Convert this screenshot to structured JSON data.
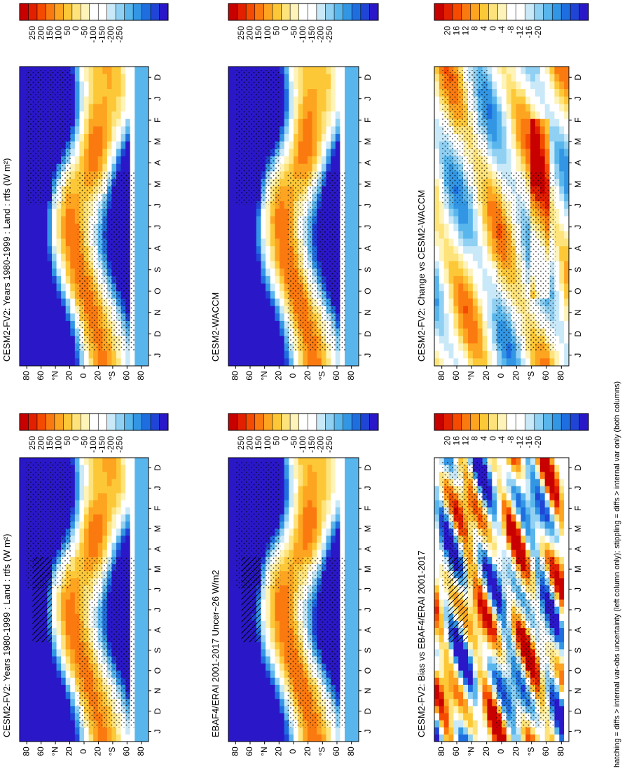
{
  "footnote": "hatching = diffs > internal var-obs uncertainty (left column only); stippling = diffs > internal var only (both columns)",
  "chart_data": [
    {
      "type": "heatmap",
      "title": "CESM2-FV2: Years 1980-1999 : Land : rtfs (W m²)",
      "months": [
        "D",
        "J",
        "F",
        "M",
        "A",
        "M",
        "J",
        "J",
        "A",
        "S",
        "O",
        "N",
        "D",
        "J"
      ],
      "lat_ticks": [
        "80",
        "60",
        "°N",
        "20",
        "0",
        "20",
        "°S",
        "60",
        "80"
      ],
      "colorbar": [
        "250",
        "200",
        "150",
        "100",
        "50",
        "0",
        "-50",
        "-100",
        "-150",
        "-200",
        "-250"
      ]
    },
    {
      "type": "heatmap",
      "title": "CESM2-FV2: Years 1980-1999 : Land : rtfs (W m²)",
      "months": [
        "D",
        "J",
        "F",
        "M",
        "A",
        "M",
        "J",
        "J",
        "A",
        "S",
        "O",
        "N",
        "D",
        "J"
      ],
      "lat_ticks": [
        "80",
        "60",
        "°N",
        "20",
        "0",
        "20",
        "°S",
        "60",
        "80"
      ],
      "colorbar": [
        "250",
        "200",
        "150",
        "100",
        "50",
        "0",
        "-50",
        "-100",
        "-150",
        "-200",
        "-250"
      ]
    },
    {
      "type": "heatmap",
      "title": "CESM2-WACCM",
      "months": [
        "D",
        "J",
        "F",
        "M",
        "A",
        "M",
        "J",
        "J",
        "A",
        "S",
        "O",
        "N",
        "D",
        "J"
      ],
      "lat_ticks": [
        "80",
        "60",
        "°N",
        "20",
        "0",
        "20",
        "°S",
        "60",
        "80"
      ],
      "colorbar": [
        "250",
        "200",
        "150",
        "100",
        "50",
        "0",
        "-50",
        "-100",
        "-150",
        "-200",
        "-250"
      ]
    },
    {
      "type": "heatmap",
      "title": "EBAF4/ERAI 2001-2017 Uncer~26 W/m2",
      "months": [
        "D",
        "J",
        "F",
        "M",
        "A",
        "M",
        "J",
        "J",
        "A",
        "S",
        "O",
        "N",
        "D",
        "J"
      ],
      "lat_ticks": [
        "80",
        "60",
        "°N",
        "20",
        "0",
        "20",
        "°S",
        "60",
        "80"
      ],
      "colorbar": [
        "250",
        "200",
        "150",
        "100",
        "50",
        "0",
        "-50",
        "-100",
        "-150",
        "-200",
        "-250"
      ]
    },
    {
      "type": "heatmap",
      "title": "CESM2-FV2: Change vs CESM2-WACCM",
      "months": [
        "D",
        "J",
        "F",
        "M",
        "A",
        "M",
        "J",
        "J",
        "A",
        "S",
        "O",
        "N",
        "D",
        "J"
      ],
      "lat_ticks": [
        "80",
        "60",
        "°N",
        "20",
        "0",
        "20",
        "°S",
        "60",
        "80"
      ],
      "colorbar": [
        "20",
        "16",
        "12",
        "8",
        "4",
        "0",
        "-4",
        "-8",
        "-12",
        "-16",
        "-20"
      ]
    },
    {
      "type": "heatmap",
      "title": "CESM2-FV2: Bias vs EBAF4/ERAI 2001-2017",
      "months": [
        "D",
        "J",
        "F",
        "M",
        "A",
        "M",
        "J",
        "J",
        "A",
        "S",
        "O",
        "N",
        "D",
        "J"
      ],
      "lat_ticks": [
        "80",
        "60",
        "°N",
        "20",
        "0",
        "20",
        "°S",
        "60",
        "80"
      ],
      "colorbar": [
        "20",
        "16",
        "12",
        "8",
        "4",
        "0",
        "-4",
        "-8",
        "-12",
        "-16",
        "-20"
      ]
    }
  ],
  "palette": [
    "#c80000",
    "#e22000",
    "#f44b00",
    "#fb7a10",
    "#fda420",
    "#fdc838",
    "#fde37a",
    "#fef3b8",
    "#ffffff",
    "#ffffff",
    "#c9e9f8",
    "#8fd0f3",
    "#59b6ec",
    "#3296e4",
    "#1e6ee0",
    "#1f44d6",
    "#2a18c8"
  ]
}
